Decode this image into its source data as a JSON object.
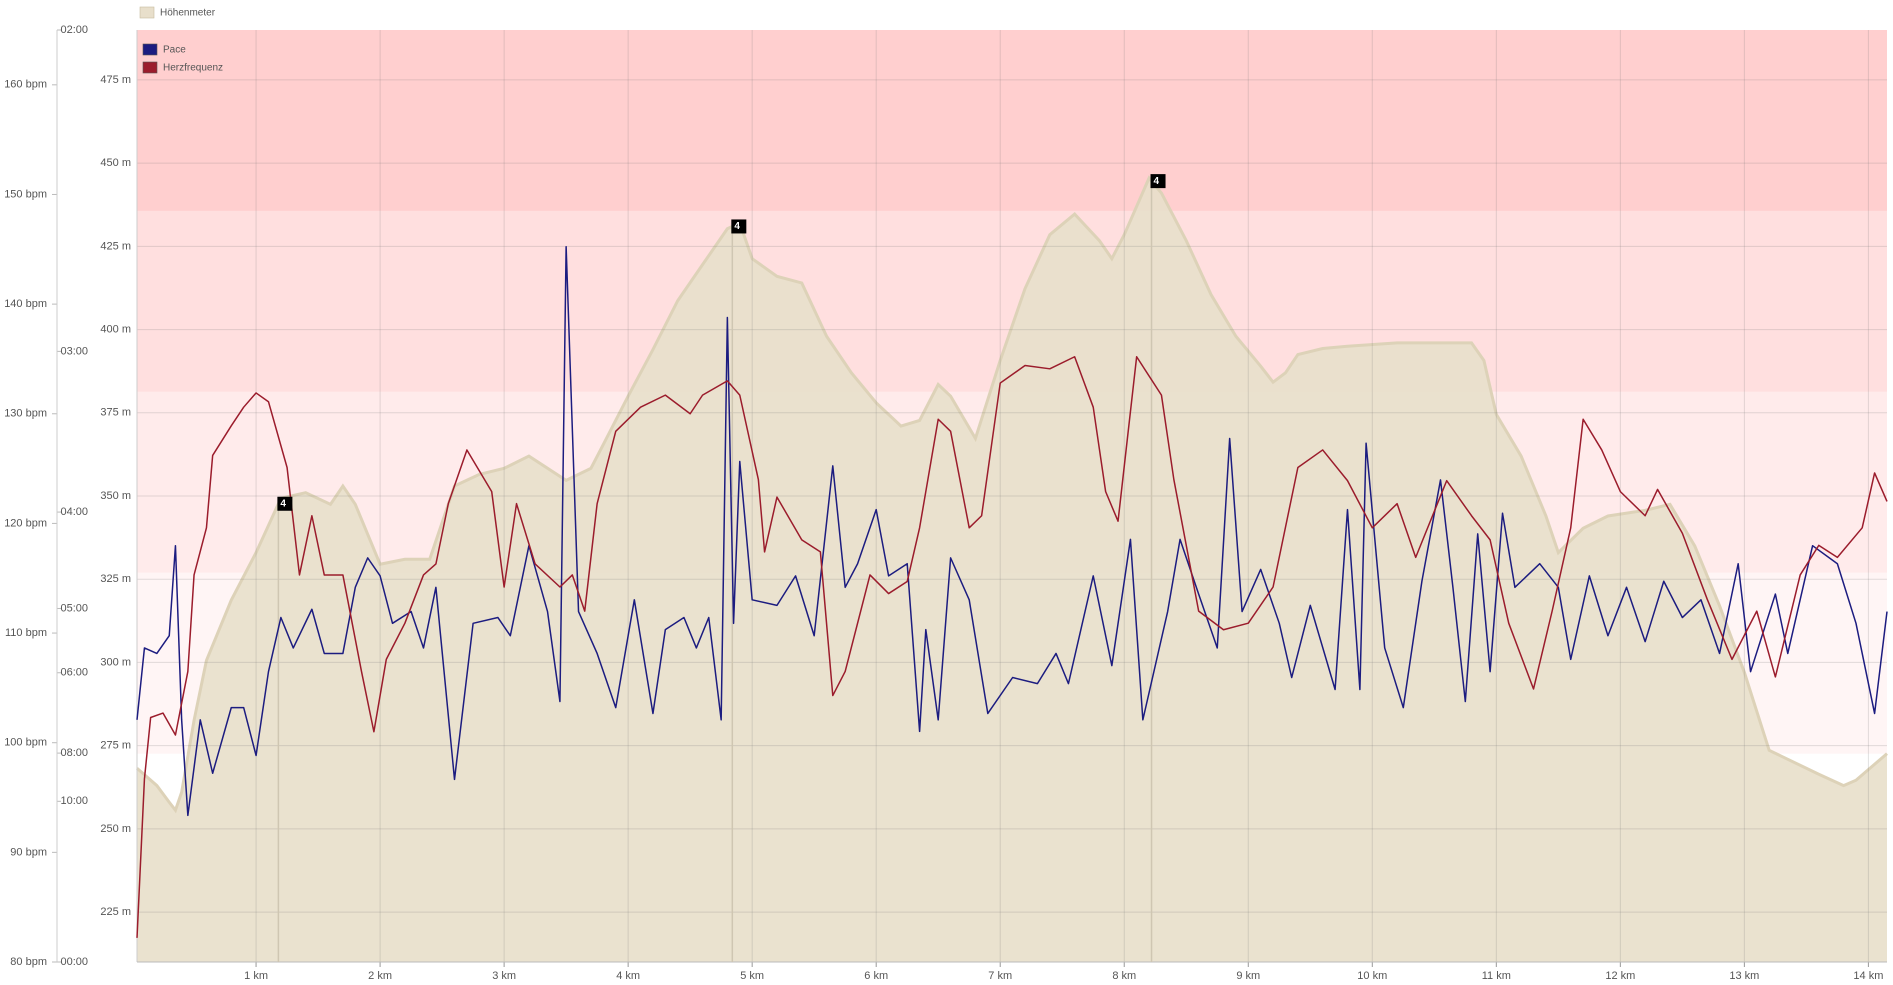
{
  "chart_data": {
    "type": "line",
    "xlim": [
      0.04,
      14.15
    ],
    "xticks": [
      {
        "value": 1,
        "label": "1 km"
      },
      {
        "value": 2,
        "label": "2 km"
      },
      {
        "value": 3,
        "label": "3 km"
      },
      {
        "value": 4,
        "label": "4 km"
      },
      {
        "value": 5,
        "label": "5 km"
      },
      {
        "value": 6,
        "label": "6 km"
      },
      {
        "value": 7,
        "label": "7 km"
      },
      {
        "value": 8,
        "label": "8 km"
      },
      {
        "value": 9,
        "label": "9 km"
      },
      {
        "value": 10,
        "label": "10 km"
      },
      {
        "value": 11,
        "label": "11 km"
      },
      {
        "value": 12,
        "label": "12 km"
      },
      {
        "value": 13,
        "label": "13 km"
      },
      {
        "value": 14,
        "label": "14 km"
      }
    ],
    "ylim": [
      210,
      490
    ],
    "yticks": [
      {
        "value": 225,
        "label": "225 m"
      },
      {
        "value": 250,
        "label": "250 m"
      },
      {
        "value": 275,
        "label": "275 m"
      },
      {
        "value": 300,
        "label": "300 m"
      },
      {
        "value": 325,
        "label": "325 m"
      },
      {
        "value": 350,
        "label": "350 m"
      },
      {
        "value": 375,
        "label": "375 m"
      },
      {
        "value": 400,
        "label": "400 m"
      },
      {
        "value": 425,
        "label": "425 m"
      },
      {
        "value": 450,
        "label": "450 m"
      },
      {
        "value": 475,
        "label": "475 m"
      }
    ],
    "y2lim": [
      80,
      165
    ],
    "y2ticks": [
      {
        "value": 80,
        "label": "80 bpm"
      },
      {
        "value": 90,
        "label": "90 bpm"
      },
      {
        "value": 100,
        "label": "100 bpm"
      },
      {
        "value": 110,
        "label": "110 bpm"
      },
      {
        "value": 120,
        "label": "120 bpm"
      },
      {
        "value": 130,
        "label": "130 bpm"
      },
      {
        "value": 140,
        "label": "140 bpm"
      },
      {
        "value": 150,
        "label": "150 bpm"
      },
      {
        "value": 160,
        "label": "160 bpm"
      }
    ],
    "y3lim": [
      2,
      60
    ],
    "y3scale": "reciprocal",
    "y3ticks": [
      {
        "value": 2,
        "label": "02:00"
      },
      {
        "value": 3,
        "label": "03:00"
      },
      {
        "value": 4,
        "label": "04:00"
      },
      {
        "value": 5,
        "label": "05:00"
      },
      {
        "value": 6,
        "label": "06:00"
      },
      {
        "value": 8,
        "label": "08:00"
      },
      {
        "value": 10,
        "label": "10:00"
      },
      {
        "value": 60,
        "label": "00:00"
      }
    ],
    "grid": true,
    "zones": [
      {
        "from": 99,
        "to": 115.5,
        "color": "#fff5f5"
      },
      {
        "from": 115.5,
        "to": 132,
        "color": "#ffebeb"
      },
      {
        "from": 132,
        "to": 148.5,
        "color": "#ffdfdf"
      },
      {
        "from": 148.5,
        "to": 165,
        "color": "#ffcfcf"
      }
    ],
    "series": [
      {
        "name": "Höhenmeter",
        "type": "area",
        "axis": "y",
        "color": "#e8dfcb",
        "x": [
          0.04,
          0.2,
          0.3,
          0.35,
          0.4,
          0.5,
          0.6,
          0.8,
          1.0,
          1.2,
          1.4,
          1.6,
          1.7,
          1.8,
          2.0,
          2.2,
          2.4,
          2.6,
          2.8,
          3.0,
          3.2,
          3.5,
          3.7,
          3.8,
          4.0,
          4.2,
          4.4,
          4.6,
          4.8,
          4.9,
          5.0,
          5.2,
          5.4,
          5.6,
          5.8,
          6.0,
          6.2,
          6.35,
          6.5,
          6.6,
          6.8,
          7.0,
          7.2,
          7.4,
          7.6,
          7.8,
          7.9,
          8.0,
          8.2,
          8.3,
          8.5,
          8.7,
          8.9,
          9.1,
          9.2,
          9.3,
          9.4,
          9.6,
          9.8,
          10.2,
          10.8,
          10.9,
          11.0,
          11.2,
          11.4,
          11.5,
          11.7,
          11.9,
          12.2,
          12.4,
          12.6,
          12.8,
          13.0,
          13.2,
          13.3,
          13.6,
          13.8,
          13.9,
          14.15
        ],
        "values": [
          268.2,
          263,
          258,
          255.6,
          261,
          282.6,
          300.6,
          318.7,
          333,
          349.3,
          351,
          347.5,
          353,
          347.5,
          329.5,
          331,
          331,
          353,
          356.5,
          358.3,
          362,
          354.7,
          358.3,
          365.5,
          380,
          394,
          408.7,
          419.5,
          430.3,
          432,
          421.3,
          416,
          414,
          398,
          387,
          378,
          371,
          372.7,
          383.5,
          380,
          367.3,
          390.7,
          412.3,
          428.5,
          434.7,
          426.7,
          421.3,
          428.5,
          445.5,
          441,
          426.7,
          410.5,
          398,
          389,
          384.2,
          387,
          392.5,
          394.3,
          395,
          396,
          396,
          390.7,
          374.5,
          362,
          344,
          333,
          340.3,
          344,
          345.7,
          347.5,
          335,
          317,
          297,
          273.6,
          271.8,
          266.4,
          263,
          264.6,
          272.6
        ]
      },
      {
        "name": "Pace",
        "type": "line",
        "axis": "y3",
        "color": "#1c1c80",
        "x": [
          0.04,
          0.1,
          0.2,
          0.3,
          0.35,
          0.4,
          0.45,
          0.55,
          0.65,
          0.8,
          0.9,
          1.0,
          1.1,
          1.2,
          1.3,
          1.45,
          1.55,
          1.7,
          1.8,
          1.9,
          2.0,
          2.1,
          2.25,
          2.35,
          2.45,
          2.6,
          2.75,
          2.95,
          3.05,
          3.2,
          3.35,
          3.45,
          3.5,
          3.6,
          3.75,
          3.9,
          4.05,
          4.2,
          4.3,
          4.45,
          4.55,
          4.65,
          4.75,
          4.8,
          4.85,
          4.9,
          5.0,
          5.2,
          5.35,
          5.5,
          5.65,
          5.75,
          5.85,
          6.0,
          6.1,
          6.25,
          6.35,
          6.4,
          6.5,
          6.6,
          6.75,
          6.9,
          7.1,
          7.3,
          7.45,
          7.55,
          7.75,
          7.9,
          8.05,
          8.15,
          8.35,
          8.45,
          8.6,
          8.75,
          8.85,
          8.95,
          9.1,
          9.25,
          9.35,
          9.5,
          9.7,
          9.8,
          9.9,
          9.95,
          10.1,
          10.25,
          10.4,
          10.55,
          10.65,
          10.75,
          10.85,
          10.95,
          11.05,
          11.15,
          11.35,
          11.5,
          11.6,
          11.75,
          11.9,
          12.05,
          12.2,
          12.35,
          12.5,
          12.65,
          12.8,
          12.95,
          13.05,
          13.25,
          13.35,
          13.55,
          13.75,
          13.9,
          14.05,
          14.15
        ],
        "values": [
          7.03,
          5.57,
          5.66,
          5.38,
          4.3,
          7.03,
          10.79,
          7.03,
          8.73,
          6.73,
          6.73,
          8.08,
          5.98,
          5.12,
          5.57,
          5.01,
          5.66,
          5.66,
          4.74,
          4.42,
          4.61,
          5.2,
          5.04,
          5.57,
          4.74,
          8.98,
          5.2,
          5.12,
          5.38,
          4.3,
          5.04,
          6.59,
          2.58,
          5.04,
          5.66,
          6.73,
          4.89,
          6.87,
          5.29,
          5.12,
          5.57,
          5.12,
          7.03,
          2.85,
          5.2,
          3.62,
          4.89,
          4.96,
          4.61,
          5.38,
          3.65,
          4.74,
          4.48,
          3.98,
          4.61,
          4.48,
          7.34,
          5.29,
          7.03,
          4.42,
          4.89,
          6.87,
          6.09,
          6.21,
          5.66,
          6.21,
          4.61,
          5.87,
          4.24,
          7.03,
          5.04,
          4.24,
          4.82,
          5.57,
          3.47,
          5.04,
          4.54,
          5.2,
          6.09,
          4.96,
          6.33,
          3.98,
          6.33,
          3.5,
          5.57,
          6.73,
          4.67,
          3.75,
          4.74,
          6.59,
          4.19,
          5.98,
          4.01,
          4.74,
          4.48,
          4.74,
          5.76,
          4.61,
          5.38,
          4.74,
          5.47,
          4.67,
          5.12,
          4.89,
          5.66,
          4.48,
          5.98,
          4.82,
          5.66,
          4.3,
          4.48,
          5.2,
          6.87,
          5.04
        ]
      },
      {
        "name": "Herzfrequenz",
        "type": "line",
        "axis": "y2",
        "color": "#9b1c2c",
        "x": [
          0.04,
          0.1,
          0.15,
          0.25,
          0.35,
          0.45,
          0.5,
          0.6,
          0.65,
          0.8,
          0.9,
          1.0,
          1.1,
          1.25,
          1.35,
          1.45,
          1.55,
          1.7,
          1.85,
          1.95,
          2.05,
          2.2,
          2.35,
          2.45,
          2.55,
          2.7,
          2.9,
          3.0,
          3.1,
          3.25,
          3.45,
          3.55,
          3.65,
          3.75,
          3.9,
          4.1,
          4.3,
          4.5,
          4.6,
          4.8,
          4.9,
          5.05,
          5.1,
          5.2,
          5.4,
          5.55,
          5.65,
          5.75,
          5.95,
          6.1,
          6.25,
          6.35,
          6.5,
          6.6,
          6.75,
          6.85,
          7.0,
          7.2,
          7.4,
          7.6,
          7.75,
          7.85,
          7.95,
          8.1,
          8.3,
          8.4,
          8.6,
          8.8,
          9.0,
          9.2,
          9.4,
          9.6,
          9.8,
          10.0,
          10.2,
          10.35,
          10.6,
          10.8,
          10.95,
          11.1,
          11.3,
          11.45,
          11.6,
          11.7,
          11.85,
          12.0,
          12.2,
          12.3,
          12.5,
          12.7,
          12.9,
          13.1,
          13.25,
          13.45,
          13.6,
          13.75,
          13.95,
          14.05,
          14.15
        ],
        "values": [
          82.2,
          96.7,
          102.3,
          102.7,
          100.7,
          106.5,
          115.3,
          119.6,
          126.2,
          128.9,
          130.6,
          131.9,
          131.1,
          125.1,
          115.3,
          120.7,
          115.3,
          115.3,
          106.5,
          101,
          107.6,
          110.9,
          115.3,
          116.3,
          121.8,
          126.7,
          122.9,
          114.2,
          121.8,
          116.3,
          114.2,
          115.3,
          112,
          121.8,
          128.4,
          130.6,
          131.7,
          130,
          131.7,
          133,
          131.7,
          124,
          117.4,
          122.4,
          118.5,
          117.4,
          104.3,
          106.5,
          115.3,
          113.6,
          114.7,
          119.6,
          129.5,
          128.4,
          119.6,
          120.7,
          132.8,
          134.4,
          134.1,
          135.2,
          130.6,
          122.9,
          120.2,
          135.2,
          131.7,
          124,
          112,
          110.3,
          110.9,
          114.2,
          125.1,
          126.7,
          123.9,
          119.6,
          121.8,
          116.9,
          123.9,
          120.7,
          118.5,
          110.9,
          104.9,
          112,
          119.6,
          129.5,
          126.7,
          122.9,
          120.7,
          123.1,
          119.1,
          113.1,
          107.6,
          112,
          106,
          115.3,
          118,
          116.9,
          119.6,
          124.6,
          122
        ]
      }
    ],
    "annotations": [
      {
        "x": 1.18,
        "label": "4"
      },
      {
        "x": 4.84,
        "label": "4"
      },
      {
        "x": 8.22,
        "label": "4"
      }
    ]
  }
}
